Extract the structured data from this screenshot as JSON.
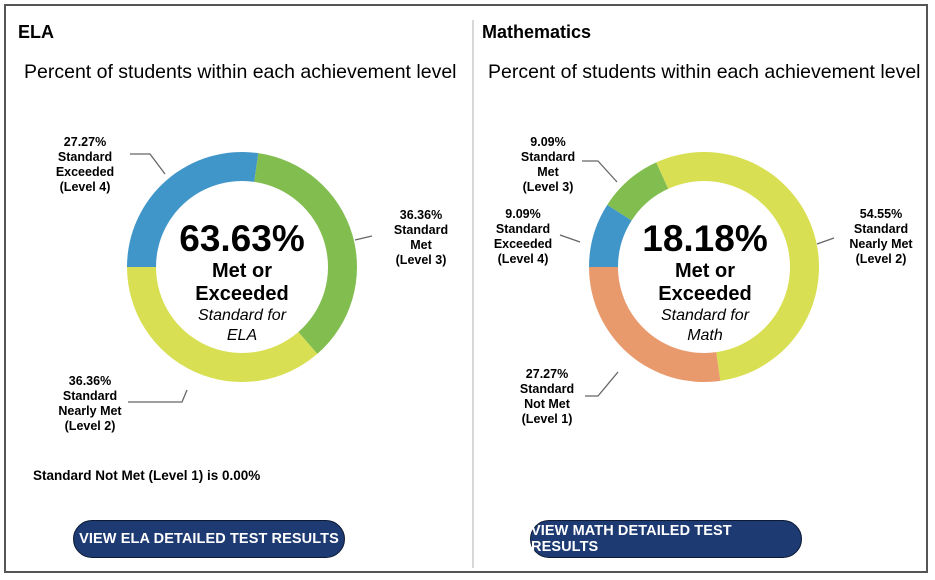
{
  "colors": {
    "level4_exceeded": "#4196c9",
    "level3_met": "#82bd50",
    "level2_nearly_met": "#d9df52",
    "level1_not_met": "#e99a6c",
    "button_bg": "#1d3a73",
    "leader_line": "#666666"
  },
  "ela": {
    "title": "ELA",
    "subtitle": "Percent of students within each achievement level",
    "center_pct": "63.63%",
    "center_met": "Met or",
    "center_exceeded": "Exceeded",
    "center_std": "Standard for",
    "center_subject": "ELA",
    "labels": {
      "level4": {
        "pct": "27.27%",
        "line1": "Standard",
        "line2": "Exceeded",
        "line3": "(Level 4)"
      },
      "level3": {
        "pct": "36.36%",
        "line1": "Standard",
        "line2": "Met",
        "line3": "(Level 3)"
      },
      "level2": {
        "pct": "36.36%",
        "line1": "Standard",
        "line2": "Nearly Met",
        "line3": "(Level 2)"
      }
    },
    "note": "Standard Not Met (Level 1) is 0.00%",
    "button_label": "VIEW ELA DETAILED TEST RESULTS"
  },
  "math": {
    "title": "Mathematics",
    "subtitle": "Percent of students within each achievement level",
    "center_pct": "18.18%",
    "center_met": "Met or",
    "center_exceeded": "Exceeded",
    "center_std": "Standard for",
    "center_subject": "Math",
    "labels": {
      "level3": {
        "pct": "9.09%",
        "line1": "Standard",
        "line2": "Met",
        "line3": "(Level 3)"
      },
      "level4": {
        "pct": "9.09%",
        "line1": "Standard",
        "line2": "Exceeded",
        "line3": "(Level 4)"
      },
      "level2": {
        "pct": "54.55%",
        "line1": "Standard",
        "line2": "Nearly Met",
        "line3": "(Level 2)"
      },
      "level1": {
        "pct": "27.27%",
        "line1": "Standard",
        "line2": "Not Met",
        "line3": "(Level 1)"
      }
    },
    "button_label": "VIEW MATH DETAILED TEST RESULTS"
  },
  "chart_data": [
    {
      "type": "pie",
      "variant": "donut",
      "title": "ELA",
      "subtitle": "Percent of students within each achievement level",
      "center_text": "63.63% Met or Exceeded Standard for ELA",
      "categories": [
        "Standard Exceeded (Level 4)",
        "Standard Met (Level 3)",
        "Standard Nearly Met (Level 2)",
        "Standard Not Met (Level 1)"
      ],
      "values": [
        27.27,
        36.36,
        36.36,
        0.0
      ],
      "colors": [
        "#4196c9",
        "#82bd50",
        "#d9df52",
        "#e99a6c"
      ],
      "annotations": [
        "Standard Not Met (Level 1) is 0.00%"
      ]
    },
    {
      "type": "pie",
      "variant": "donut",
      "title": "Mathematics",
      "subtitle": "Percent of students within each achievement level",
      "center_text": "18.18% Met or Exceeded Standard for Math",
      "categories": [
        "Standard Exceeded (Level 4)",
        "Standard Met (Level 3)",
        "Standard Nearly Met (Level 2)",
        "Standard Not Met (Level 1)"
      ],
      "values": [
        9.09,
        9.09,
        54.55,
        27.27
      ],
      "colors": [
        "#4196c9",
        "#82bd50",
        "#d9df52",
        "#e99a6c"
      ]
    }
  ]
}
